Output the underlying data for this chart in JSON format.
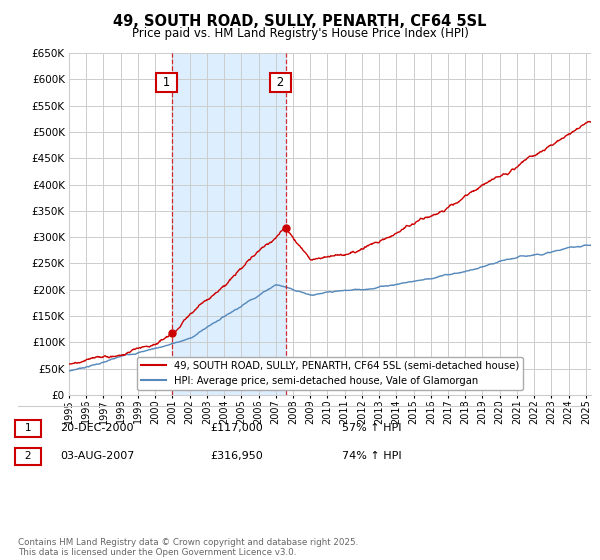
{
  "title": "49, SOUTH ROAD, SULLY, PENARTH, CF64 5SL",
  "subtitle": "Price paid vs. HM Land Registry's House Price Index (HPI)",
  "legend_line1": "49, SOUTH ROAD, SULLY, PENARTH, CF64 5SL (semi-detached house)",
  "legend_line2": "HPI: Average price, semi-detached house, Vale of Glamorgan",
  "annotation1_label": "1",
  "annotation1_date": "20-DEC-2000",
  "annotation1_price": "£117,000",
  "annotation1_hpi": "57% ↑ HPI",
  "annotation2_label": "2",
  "annotation2_date": "03-AUG-2007",
  "annotation2_price": "£316,950",
  "annotation2_hpi": "74% ↑ HPI",
  "footer": "Contains HM Land Registry data © Crown copyright and database right 2025.\nThis data is licensed under the Open Government Licence v3.0.",
  "red_color": "#cc0000",
  "blue_color": "#5588bb",
  "shade_color": "#ddeeff",
  "background_color": "#ffffff",
  "grid_color": "#cccccc",
  "ylim": [
    0,
    650000
  ],
  "yticks": [
    0,
    50000,
    100000,
    150000,
    200000,
    250000,
    300000,
    350000,
    400000,
    450000,
    500000,
    550000,
    600000,
    650000
  ],
  "sale1_x": 2000.96,
  "sale1_y": 117000,
  "sale2_x": 2007.59,
  "sale2_y": 316950,
  "vline1_x": 2000.96,
  "vline2_x": 2007.59,
  "xmin": 1995,
  "xmax": 2025.3
}
